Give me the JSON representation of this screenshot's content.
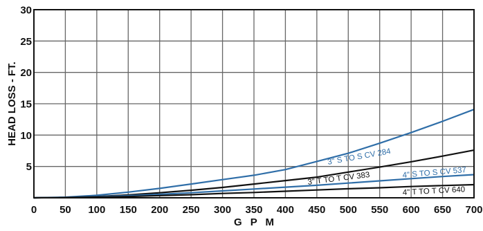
{
  "chart_data": {
    "type": "line",
    "xlabel": "G P M",
    "ylabel": "HEAD LOSS - FT.",
    "xlim": [
      0,
      700
    ],
    "ylim": [
      0,
      30
    ],
    "xticks": [
      "0",
      "50",
      "100",
      "150",
      "200",
      "250",
      "300",
      "350",
      "400",
      "450",
      "500",
      "550",
      "600",
      "650",
      "700"
    ],
    "yticks": [
      "5",
      "10",
      "15",
      "20",
      "25",
      "30"
    ],
    "grid": true,
    "colors": {
      "blue": "#2f6ea8",
      "black": "#111111",
      "grid": "#666666"
    },
    "series": [
      {
        "name": "3\" S TO S CV 284",
        "color": "#2f6ea8",
        "x": [
          0,
          50,
          100,
          150,
          200,
          250,
          300,
          350,
          400,
          450,
          500,
          550,
          600,
          650,
          700
        ],
        "y": [
          0,
          0.1,
          0.4,
          0.9,
          1.5,
          2.2,
          2.9,
          3.6,
          4.5,
          5.8,
          7.1,
          8.7,
          10.4,
          12.2,
          14.1
        ]
      },
      {
        "name": "3\" T TO T  CV 383",
        "color": "#111111",
        "x": [
          0,
          50,
          100,
          150,
          200,
          250,
          300,
          350,
          400,
          450,
          500,
          550,
          600,
          650,
          700
        ],
        "y": [
          0,
          0.05,
          0.2,
          0.45,
          0.8,
          1.2,
          1.65,
          2.2,
          2.75,
          3.3,
          4.1,
          4.9,
          5.75,
          6.65,
          7.6
        ]
      },
      {
        "name": "4\" S TO S CV 537",
        "color": "#2f6ea8",
        "x": [
          0,
          50,
          100,
          150,
          200,
          250,
          300,
          350,
          400,
          450,
          500,
          550,
          600,
          650,
          700
        ],
        "y": [
          0,
          0.05,
          0.15,
          0.35,
          0.55,
          0.8,
          1.1,
          1.4,
          1.7,
          2.0,
          2.35,
          2.7,
          3.05,
          3.4,
          3.7
        ]
      },
      {
        "name": "4\" T TO T  CV 640",
        "color": "#111111",
        "x": [
          0,
          50,
          100,
          150,
          200,
          250,
          300,
          350,
          400,
          450,
          500,
          550,
          600,
          650,
          700
        ],
        "y": [
          0,
          0.03,
          0.1,
          0.2,
          0.35,
          0.5,
          0.7,
          0.85,
          1.05,
          1.25,
          1.45,
          1.6,
          1.8,
          1.95,
          2.1
        ]
      }
    ]
  }
}
